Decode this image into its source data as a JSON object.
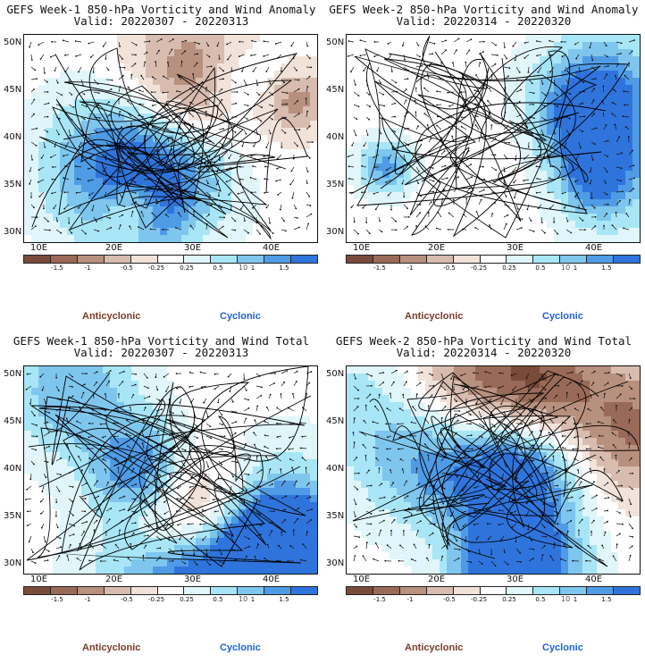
{
  "panels": [
    {
      "id": "p1",
      "title": "GEFS Week-1 850-hPa Vorticity and Wind Anomaly",
      "valid": "Valid: 20220307 - 20220313",
      "seed": 11
    },
    {
      "id": "p2",
      "title": "GEFS Week-2 850-hPa Vorticity and Wind Anomaly",
      "valid": "Valid: 20220314 - 20220320",
      "seed": 23
    },
    {
      "id": "p3",
      "title": "GEFS Week-1 850-hPa Vorticity and Wind Total",
      "valid": "Valid: 20220307 - 20220313",
      "seed": 37
    },
    {
      "id": "p4",
      "title": "GEFS Week-2 850-hPa Vorticity and Wind Total",
      "valid": "Valid: 20220314 - 20220320",
      "seed": 51
    }
  ],
  "lat_labels": [
    "50N",
    "45N",
    "40N",
    "35N",
    "30N"
  ],
  "lon_labels": [
    "10E",
    "20E",
    "30E",
    "40E"
  ],
  "colorbar": {
    "labels": [
      "-1.5",
      "-1",
      "-0.5",
      "-0.25",
      "0.25",
      "0.5",
      "1",
      "1.5"
    ],
    "scale": "10",
    "colors": [
      "#7a4a3a",
      "#9a6a58",
      "#b8907e",
      "#d8bcaf",
      "#f1e2da",
      "#ffffff",
      "#e0f6fb",
      "#a8e6f7",
      "#7fc6ee",
      "#4f9be6",
      "#2f74dc"
    ]
  },
  "legend": {
    "anticyclonic": "Anticyclonic",
    "cyclonic": "Cyclonic"
  }
}
